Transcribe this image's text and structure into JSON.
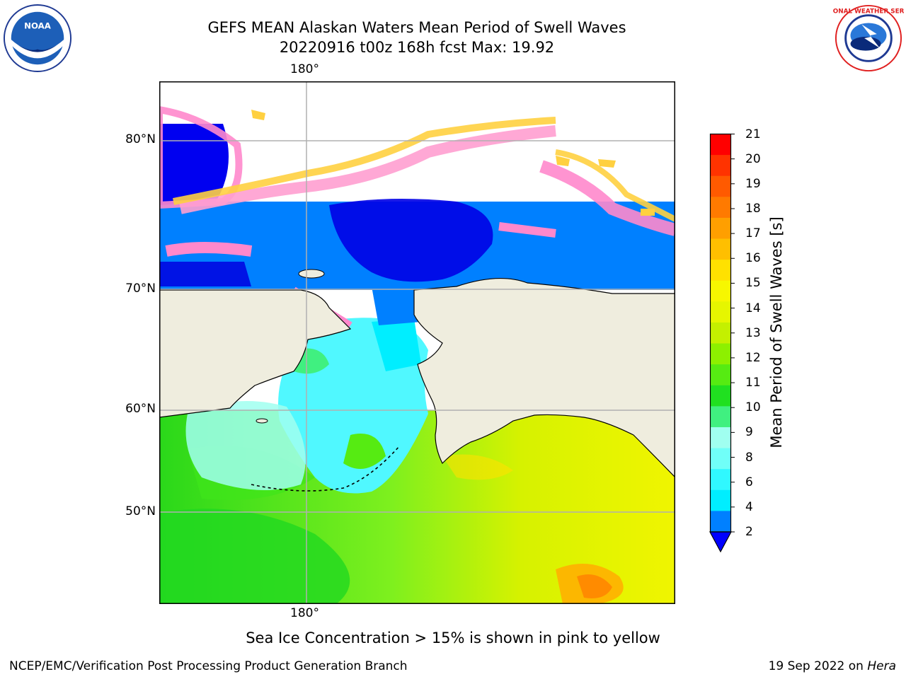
{
  "title": {
    "line1": "GEFS MEAN Alaskan Waters Mean Period of Swell Waves",
    "line2": "20220916 t00z 168h fcst   Max: 19.92"
  },
  "logos": {
    "left_text": "NOAA",
    "right_text": "NATIONAL WEATHER SERVICE"
  },
  "map": {
    "lon_top": "180°",
    "lon_bottom": "180°",
    "lat_labels": [
      "80°N",
      "70°N",
      "60°N",
      "50°N"
    ],
    "colors": {
      "land": "#efedde",
      "ice_pink": "#ff88cc",
      "ice_yellow": "#ffd040"
    }
  },
  "colorbar": {
    "title": "Mean Period of Swell Waves [s]",
    "ticks": [
      "21",
      "20",
      "19",
      "18",
      "17",
      "16",
      "15",
      "14",
      "13",
      "12",
      "11",
      "10",
      "9",
      "8",
      "6",
      "4",
      "2"
    ],
    "colors": [
      "#ff0000",
      "#ff3300",
      "#ff5a00",
      "#ff7a00",
      "#ff9f00",
      "#ffbf00",
      "#ffe100",
      "#f7f700",
      "#e6f600",
      "#c4f000",
      "#8df000",
      "#56eb12",
      "#20e020",
      "#40f080",
      "#a0fff0",
      "#70fff8",
      "#30f8ff",
      "#00eeff",
      "#0080ff"
    ],
    "extend_color": "#0000ff"
  },
  "note": "Sea Ice Concentration > 15% is shown in pink to yellow",
  "footer": {
    "left": "NCEP/EMC/Verification Post Processing Product Generation Branch",
    "right_date": "19 Sep 2022 on",
    "right_host": "Hera"
  }
}
